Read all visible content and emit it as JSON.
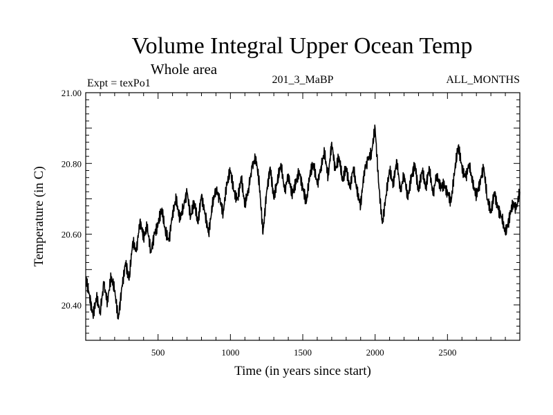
{
  "chart_data": {
    "type": "line",
    "title": "Volume Integral Upper Ocean Temp",
    "subtitle": "Whole area",
    "annotations": {
      "left": "Expt = texPo1",
      "center": "201_3_MaBP",
      "right": "ALL_MONTHS"
    },
    "xlabel": "Time (in years since start)",
    "ylabel": "Temperature (in C)",
    "xlim": [
      0,
      3000
    ],
    "ylim": [
      20.3,
      21.0
    ],
    "x_ticks": [
      500,
      1000,
      1500,
      2000,
      2500
    ],
    "x_tick_labels": [
      "500",
      "1000",
      "1500",
      "2000",
      "2500"
    ],
    "y_ticks": [
      20.4,
      20.6,
      20.8,
      21.0
    ],
    "y_tick_labels": [
      "20.40",
      "20.60",
      "20.80",
      "21.00"
    ],
    "grid": false,
    "series": [
      {
        "x": [
          0,
          25,
          50,
          75,
          100,
          125,
          150,
          175,
          200,
          225,
          250,
          275,
          300,
          325,
          350,
          375,
          400,
          425,
          450,
          475,
          500,
          525,
          550,
          575,
          600,
          625,
          650,
          675,
          700,
          725,
          750,
          775,
          800,
          825,
          850,
          875,
          900,
          925,
          950,
          975,
          1000,
          1025,
          1050,
          1075,
          1100,
          1125,
          1150,
          1175,
          1200,
          1225,
          1250,
          1275,
          1300,
          1325,
          1350,
          1375,
          1400,
          1425,
          1450,
          1475,
          1500,
          1525,
          1550,
          1575,
          1600,
          1625,
          1650,
          1675,
          1700,
          1725,
          1750,
          1775,
          1800,
          1825,
          1850,
          1875,
          1900,
          1925,
          1950,
          1975,
          2000,
          2025,
          2050,
          2075,
          2100,
          2125,
          2150,
          2175,
          2200,
          2225,
          2250,
          2275,
          2300,
          2325,
          2350,
          2375,
          2400,
          2425,
          2450,
          2475,
          2500,
          2525,
          2550,
          2575,
          2600,
          2625,
          2650,
          2675,
          2700,
          2725,
          2750,
          2775,
          2800,
          2825,
          2850,
          2875,
          2900,
          2925,
          2950,
          2975,
          3000
        ],
        "values": [
          20.48,
          20.43,
          20.37,
          20.42,
          20.38,
          20.46,
          20.41,
          20.48,
          20.44,
          20.36,
          20.45,
          20.52,
          20.47,
          20.58,
          20.55,
          20.64,
          20.59,
          20.62,
          20.55,
          20.6,
          20.63,
          20.67,
          20.61,
          20.58,
          20.66,
          20.7,
          20.64,
          20.68,
          20.72,
          20.65,
          20.69,
          20.63,
          20.71,
          20.66,
          20.6,
          20.68,
          20.73,
          20.7,
          20.66,
          20.74,
          20.78,
          20.72,
          20.7,
          20.76,
          20.68,
          20.73,
          20.79,
          20.82,
          20.74,
          20.6,
          20.72,
          20.79,
          20.7,
          20.75,
          20.8,
          20.72,
          20.77,
          20.71,
          20.74,
          20.78,
          20.73,
          20.69,
          20.77,
          20.8,
          20.74,
          20.79,
          20.83,
          20.76,
          20.86,
          20.78,
          20.82,
          20.75,
          20.79,
          20.73,
          20.79,
          20.72,
          20.68,
          20.78,
          20.81,
          20.83,
          20.9,
          20.74,
          20.63,
          20.71,
          20.78,
          20.74,
          20.81,
          20.72,
          20.77,
          20.7,
          20.76,
          20.8,
          20.72,
          20.78,
          20.73,
          20.79,
          20.71,
          20.77,
          20.73,
          20.74,
          20.72,
          20.69,
          20.78,
          20.85,
          20.79,
          20.76,
          20.8,
          20.74,
          20.71,
          20.75,
          20.79,
          20.7,
          20.66,
          20.72,
          20.67,
          20.65,
          20.6,
          20.64,
          20.69,
          20.67,
          20.72
        ]
      }
    ]
  }
}
